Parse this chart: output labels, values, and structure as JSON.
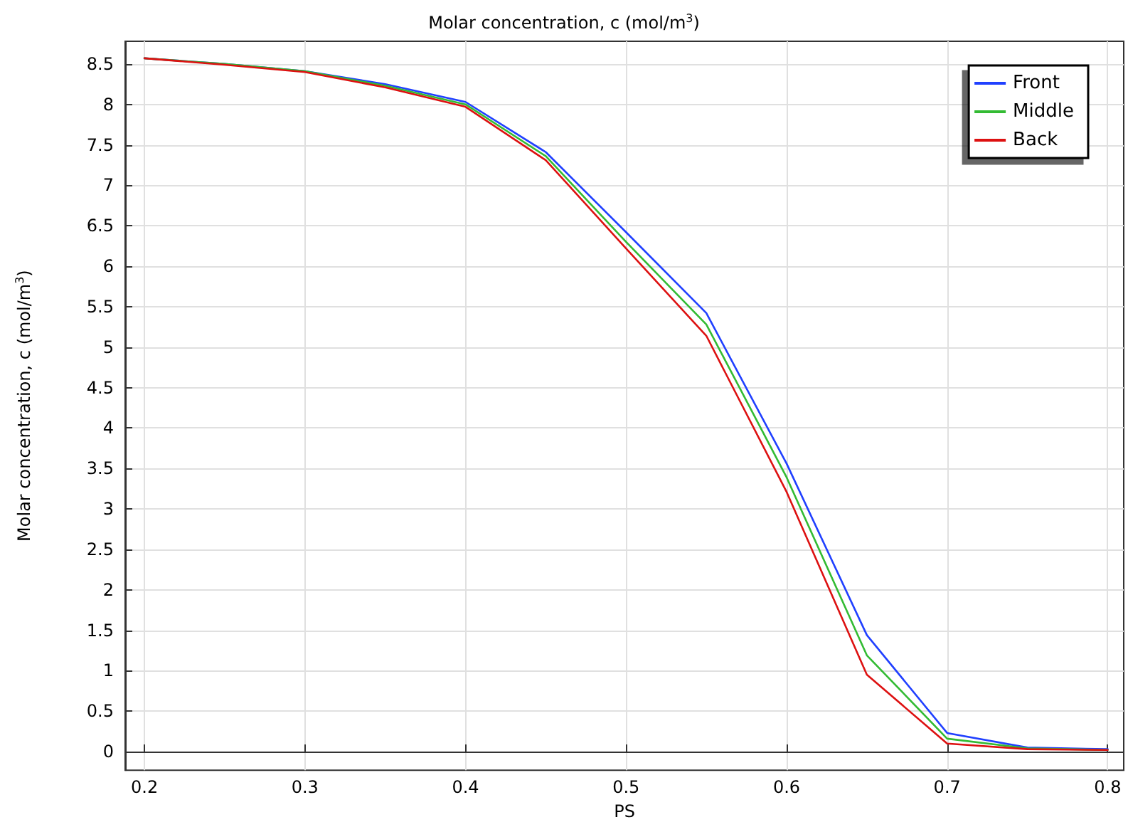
{
  "chart_data": {
    "type": "line",
    "title": "Molar concentration, c (mol/m$^{3}$)",
    "xlabel": "PS",
    "ylabel": "Molar concentration, c (mol/m$^{3}$)",
    "x": [
      0.2,
      0.25,
      0.3,
      0.35,
      0.4,
      0.45,
      0.5,
      0.55,
      0.6,
      0.65,
      0.7,
      0.75,
      0.8
    ],
    "series": [
      {
        "name": "Front",
        "color": "#2040ff",
        "values": [
          8.57,
          8.5,
          8.41,
          8.25,
          8.03,
          7.41,
          6.42,
          5.42,
          3.56,
          1.44,
          0.23,
          0.05,
          0.03
        ]
      },
      {
        "name": "Middle",
        "color": "#33bb33",
        "values": [
          8.57,
          8.5,
          8.41,
          8.23,
          8.0,
          7.36,
          6.3,
          5.28,
          3.39,
          1.19,
          0.16,
          0.04,
          0.02
        ]
      },
      {
        "name": "Back",
        "color": "#dd1111",
        "values": [
          8.57,
          8.49,
          8.4,
          8.21,
          7.97,
          7.31,
          6.22,
          5.14,
          3.21,
          0.95,
          0.1,
          0.03,
          0.02
        ]
      }
    ],
    "xlim": [
      0.188,
      0.81
    ],
    "xticks": [
      0.2,
      0.3,
      0.4,
      0.5,
      0.6,
      0.7,
      0.8
    ],
    "ylim": [
      -0.23,
      8.78
    ],
    "yticks": [
      0,
      0.5,
      1,
      1.5,
      2,
      2.5,
      3,
      3.5,
      4,
      4.5,
      5,
      5.5,
      6,
      6.5,
      7,
      7.5,
      8,
      8.5
    ],
    "grid": true,
    "legend": "top right",
    "marker": "none",
    "line_style": "solid"
  }
}
